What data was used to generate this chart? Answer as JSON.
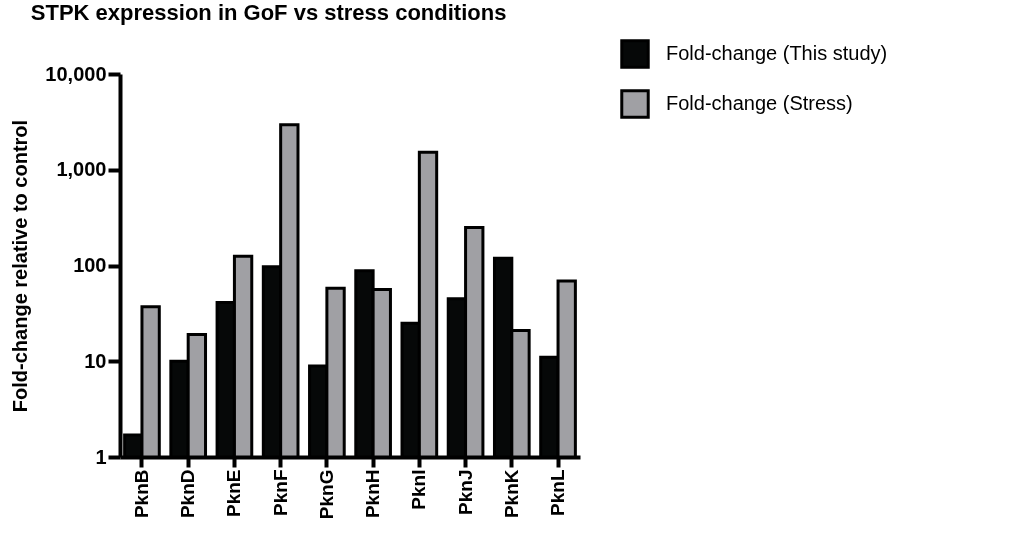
{
  "chart_data": {
    "type": "bar",
    "title": "STPK expression in GoF vs stress conditions",
    "ylabel": "Fold-change relative to control",
    "categories": [
      "PknB",
      "PknD",
      "PknE",
      "PknF",
      "PknG",
      "PknH",
      "PknI",
      "PknJ",
      "PknK",
      "PknL"
    ],
    "series": [
      {
        "name": "Fold-change (This study)",
        "color": "#060808",
        "values": [
          1.7,
          10,
          41,
          97,
          8.9,
          88,
          25,
          45,
          119,
          11
        ]
      },
      {
        "name": "Fold-change (Stress)",
        "color": "#a0a0a4",
        "values": [
          37,
          19,
          125,
          2950,
          58,
          56,
          1520,
          250,
          21,
          69
        ]
      }
    ],
    "log": "y",
    "ylim": [
      1,
      10000
    ],
    "yticks": [
      1,
      10,
      100,
      {
        "value": 1000,
        "label": "1,000"
      },
      {
        "value": 10000,
        "label": "10,000"
      }
    ],
    "grid": false,
    "legend": "top right"
  }
}
